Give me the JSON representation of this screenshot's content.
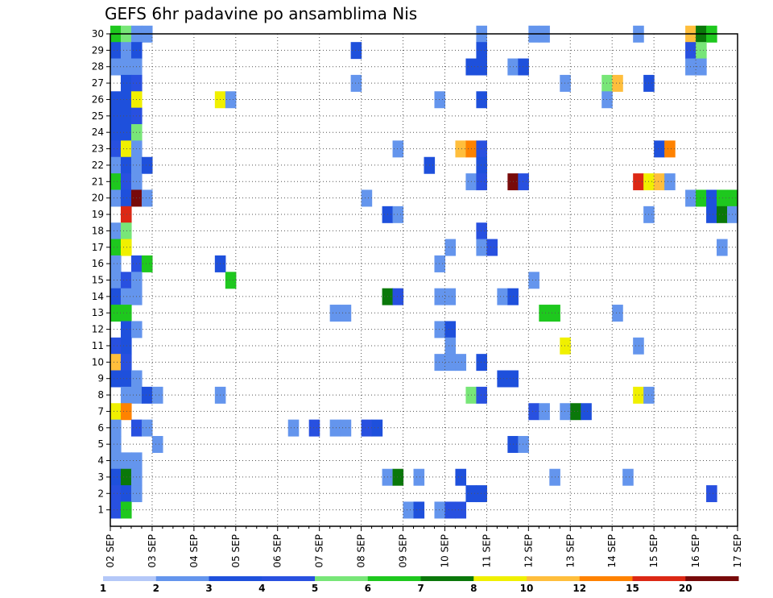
{
  "chart_data": {
    "type": "heatmap",
    "title": "GEFS 6hr padavine po ansamblima Nis",
    "xlabel": "",
    "ylabel": "",
    "x_ticks": [
      "02 SEP",
      "03 SEP",
      "04 SEP",
      "05 SEP",
      "06 SEP",
      "07 SEP",
      "08 SEP",
      "09 SEP",
      "10 SEP",
      "11 SEP",
      "12 SEP",
      "13 SEP",
      "14 SEP",
      "15 SEP",
      "16 SEP",
      "17 SEP"
    ],
    "y_ticks": [
      "1",
      "2",
      "3",
      "4",
      "5",
      "6",
      "7",
      "8",
      "9",
      "10",
      "11",
      "12",
      "13",
      "14",
      "15",
      "16",
      "17",
      "18",
      "19",
      "20",
      "21",
      "22",
      "23",
      "24",
      "25",
      "26",
      "27",
      "28",
      "29",
      "30"
    ],
    "x_steps_per_day": 4,
    "y_range": [
      0,
      30
    ],
    "grid": true,
    "colorbar": {
      "position": "bottom",
      "labels": [
        "1",
        "2",
        "3",
        "4",
        "5",
        "6",
        "7",
        "8",
        "10",
        "12",
        "15",
        "20"
      ],
      "colors": [
        "#b4c8f8",
        "#6495ed",
        "#1e50dc",
        "#2850e0",
        "#78e678",
        "#1ec81e",
        "#0a780a",
        "#f0f000",
        "#ffbe3c",
        "#ff8200",
        "#dc2814",
        "#780a0a"
      ]
    },
    "cells": [
      [
        0,
        30,
        5
      ],
      [
        1,
        30,
        4
      ],
      [
        2,
        30,
        1
      ],
      [
        3,
        30,
        1
      ],
      [
        35,
        30,
        1
      ],
      [
        40,
        30,
        1
      ],
      [
        41,
        30,
        1
      ],
      [
        50,
        30,
        1
      ],
      [
        55,
        30,
        8
      ],
      [
        56,
        30,
        6
      ],
      [
        57,
        30,
        5
      ],
      [
        0,
        29,
        2
      ],
      [
        1,
        29,
        1
      ],
      [
        2,
        29,
        2
      ],
      [
        23,
        29,
        2
      ],
      [
        35,
        29,
        2
      ],
      [
        55,
        29,
        3
      ],
      [
        56,
        29,
        4
      ],
      [
        0,
        28,
        1
      ],
      [
        1,
        28,
        1
      ],
      [
        2,
        28,
        1
      ],
      [
        34,
        28,
        2
      ],
      [
        35,
        28,
        2
      ],
      [
        38,
        28,
        1
      ],
      [
        39,
        28,
        2
      ],
      [
        55,
        28,
        1
      ],
      [
        56,
        28,
        1
      ],
      [
        1,
        27,
        2
      ],
      [
        2,
        27,
        3
      ],
      [
        23,
        27,
        1
      ],
      [
        43,
        27,
        1
      ],
      [
        47,
        27,
        4
      ],
      [
        48,
        27,
        8
      ],
      [
        51,
        27,
        2
      ],
      [
        0,
        26,
        2
      ],
      [
        1,
        26,
        2
      ],
      [
        2,
        26,
        7
      ],
      [
        10,
        26,
        7
      ],
      [
        11,
        26,
        1
      ],
      [
        31,
        26,
        1
      ],
      [
        35,
        26,
        2
      ],
      [
        47,
        26,
        1
      ],
      [
        0,
        25,
        2
      ],
      [
        1,
        25,
        2
      ],
      [
        2,
        25,
        3
      ],
      [
        0,
        24,
        2
      ],
      [
        1,
        24,
        2
      ],
      [
        2,
        24,
        4
      ],
      [
        0,
        23,
        3
      ],
      [
        1,
        23,
        7
      ],
      [
        2,
        23,
        1
      ],
      [
        27,
        23,
        1
      ],
      [
        33,
        23,
        8
      ],
      [
        34,
        23,
        9
      ],
      [
        35,
        23,
        3
      ],
      [
        52,
        23,
        2
      ],
      [
        53,
        23,
        9
      ],
      [
        0,
        22,
        1
      ],
      [
        1,
        22,
        2
      ],
      [
        2,
        22,
        1
      ],
      [
        3,
        22,
        2
      ],
      [
        30,
        22,
        2
      ],
      [
        35,
        22,
        2
      ],
      [
        0,
        21,
        5
      ],
      [
        1,
        21,
        3
      ],
      [
        2,
        21,
        1
      ],
      [
        34,
        21,
        1
      ],
      [
        35,
        21,
        3
      ],
      [
        38,
        21,
        11
      ],
      [
        39,
        21,
        3
      ],
      [
        50,
        21,
        10
      ],
      [
        51,
        21,
        7
      ],
      [
        52,
        21,
        8
      ],
      [
        53,
        21,
        1
      ],
      [
        0,
        20,
        1
      ],
      [
        1,
        20,
        2
      ],
      [
        2,
        20,
        11
      ],
      [
        3,
        20,
        1
      ],
      [
        24,
        20,
        1
      ],
      [
        55,
        20,
        1
      ],
      [
        56,
        20,
        5
      ],
      [
        57,
        20,
        2
      ],
      [
        58,
        20,
        5
      ],
      [
        59,
        20,
        5
      ],
      [
        1,
        19,
        10
      ],
      [
        26,
        19,
        2
      ],
      [
        27,
        19,
        1
      ],
      [
        51,
        19,
        1
      ],
      [
        57,
        19,
        2
      ],
      [
        58,
        19,
        6
      ],
      [
        59,
        19,
        1
      ],
      [
        0,
        18,
        1
      ],
      [
        1,
        18,
        4
      ],
      [
        35,
        18,
        3
      ],
      [
        0,
        17,
        5
      ],
      [
        1,
        17,
        7
      ],
      [
        32,
        17,
        1
      ],
      [
        35,
        17,
        1
      ],
      [
        36,
        17,
        3
      ],
      [
        58,
        17,
        1
      ],
      [
        0,
        16,
        1
      ],
      [
        2,
        16,
        3
      ],
      [
        3,
        16,
        5
      ],
      [
        10,
        16,
        2
      ],
      [
        31,
        16,
        1
      ],
      [
        0,
        15,
        1
      ],
      [
        1,
        15,
        3
      ],
      [
        2,
        15,
        1
      ],
      [
        11,
        15,
        5
      ],
      [
        40,
        15,
        1
      ],
      [
        0,
        14,
        2
      ],
      [
        1,
        14,
        1
      ],
      [
        2,
        14,
        1
      ],
      [
        26,
        14,
        6
      ],
      [
        27,
        14,
        3
      ],
      [
        31,
        14,
        1
      ],
      [
        32,
        14,
        1
      ],
      [
        37,
        14,
        1
      ],
      [
        38,
        14,
        2
      ],
      [
        0,
        13,
        5
      ],
      [
        1,
        13,
        5
      ],
      [
        21,
        13,
        1
      ],
      [
        22,
        13,
        1
      ],
      [
        41,
        13,
        5
      ],
      [
        42,
        13,
        5
      ],
      [
        48,
        13,
        1
      ],
      [
        1,
        12,
        2
      ],
      [
        2,
        12,
        1
      ],
      [
        31,
        12,
        1
      ],
      [
        32,
        12,
        2
      ],
      [
        0,
        11,
        3
      ],
      [
        1,
        11,
        2
      ],
      [
        32,
        11,
        1
      ],
      [
        43,
        11,
        7
      ],
      [
        50,
        11,
        1
      ],
      [
        0,
        10,
        8
      ],
      [
        1,
        10,
        3
      ],
      [
        31,
        10,
        1
      ],
      [
        32,
        10,
        1
      ],
      [
        33,
        10,
        1
      ],
      [
        35,
        10,
        2
      ],
      [
        0,
        9,
        2
      ],
      [
        1,
        9,
        2
      ],
      [
        2,
        9,
        1
      ],
      [
        37,
        9,
        2
      ],
      [
        38,
        9,
        2
      ],
      [
        1,
        8,
        1
      ],
      [
        2,
        8,
        1
      ],
      [
        3,
        8,
        2
      ],
      [
        4,
        8,
        1
      ],
      [
        10,
        8,
        1
      ],
      [
        34,
        8,
        4
      ],
      [
        35,
        8,
        3
      ],
      [
        50,
        8,
        7
      ],
      [
        51,
        8,
        1
      ],
      [
        0,
        7,
        7
      ],
      [
        1,
        7,
        9
      ],
      [
        40,
        7,
        3
      ],
      [
        41,
        7,
        1
      ],
      [
        43,
        7,
        1
      ],
      [
        44,
        7,
        6
      ],
      [
        45,
        7,
        2
      ],
      [
        0,
        6,
        1
      ],
      [
        2,
        6,
        3
      ],
      [
        3,
        6,
        1
      ],
      [
        17,
        6,
        1
      ],
      [
        19,
        6,
        3
      ],
      [
        21,
        6,
        1
      ],
      [
        22,
        6,
        1
      ],
      [
        24,
        6,
        3
      ],
      [
        25,
        6,
        2
      ],
      [
        0,
        5,
        1
      ],
      [
        4,
        5,
        1
      ],
      [
        38,
        5,
        2
      ],
      [
        39,
        5,
        1
      ],
      [
        0,
        4,
        1
      ],
      [
        1,
        4,
        1
      ],
      [
        2,
        4,
        1
      ],
      [
        0,
        3,
        2
      ],
      [
        1,
        3,
        6
      ],
      [
        2,
        3,
        1
      ],
      [
        26,
        3,
        1
      ],
      [
        27,
        3,
        6
      ],
      [
        29,
        3,
        1
      ],
      [
        33,
        3,
        2
      ],
      [
        42,
        3,
        1
      ],
      [
        49,
        3,
        1
      ],
      [
        0,
        2,
        3
      ],
      [
        1,
        2,
        2
      ],
      [
        2,
        2,
        1
      ],
      [
        34,
        2,
        2
      ],
      [
        35,
        2,
        2
      ],
      [
        57,
        2,
        3
      ],
      [
        0,
        1,
        3
      ],
      [
        1,
        1,
        5
      ],
      [
        28,
        1,
        1
      ],
      [
        29,
        1,
        2
      ],
      [
        31,
        1,
        1
      ],
      [
        32,
        1,
        3
      ],
      [
        33,
        1,
        3
      ]
    ]
  }
}
